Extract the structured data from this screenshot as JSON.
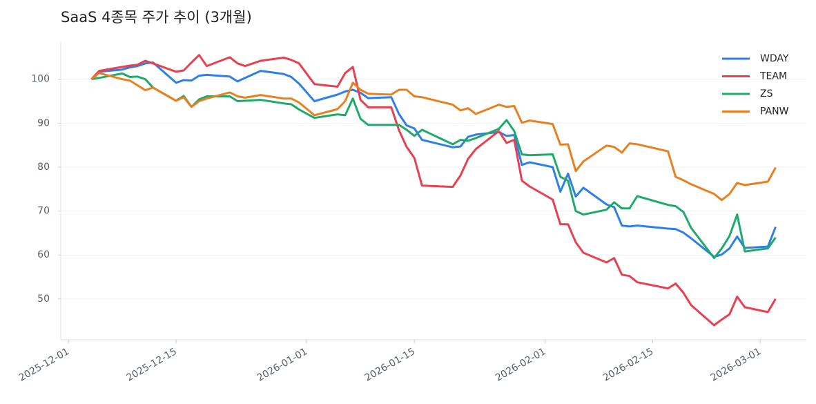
{
  "chart_data": {
    "type": "line",
    "title": "SaaS 4종목 주가 추이 (3개월)",
    "x": [
      "2025-12-04",
      "2025-12-05",
      "2025-12-08",
      "2025-12-09",
      "2025-12-10",
      "2025-12-11",
      "2025-12-12",
      "2025-12-15",
      "2025-12-16",
      "2025-12-17",
      "2025-12-18",
      "2025-12-19",
      "2025-12-22",
      "2025-12-23",
      "2025-12-24",
      "2025-12-26",
      "2025-12-29",
      "2025-12-30",
      "2025-12-31",
      "2026-01-02",
      "2026-01-05",
      "2026-01-06",
      "2026-01-07",
      "2026-01-08",
      "2026-01-09",
      "2026-01-12",
      "2026-01-13",
      "2026-01-14",
      "2026-01-15",
      "2026-01-16",
      "2026-01-20",
      "2026-01-21",
      "2026-01-22",
      "2026-01-23",
      "2026-01-26",
      "2026-01-27",
      "2026-01-28",
      "2026-01-29",
      "2026-01-30",
      "2026-02-02",
      "2026-02-03",
      "2026-02-04",
      "2026-02-05",
      "2026-02-06",
      "2026-02-09",
      "2026-02-10",
      "2026-02-11",
      "2026-02-12",
      "2026-02-13",
      "2026-02-17",
      "2026-02-18",
      "2026-02-19",
      "2026-02-20",
      "2026-02-23",
      "2026-02-24",
      "2026-02-25",
      "2026-02-26",
      "2026-02-27",
      "2026-03-02",
      "2026-03-03"
    ],
    "series": [
      {
        "name": "WDAY",
        "color": "#2f7fe8",
        "values": [
          100,
          101.7,
          102.2,
          102.7,
          103,
          103.6,
          103.8,
          99.2,
          99.8,
          99.7,
          100.8,
          101,
          100.6,
          99.5,
          100.3,
          101.9,
          101.2,
          100.5,
          99,
          95,
          96.5,
          97.2,
          97.6,
          96.9,
          95.7,
          95.9,
          92.1,
          89.5,
          88.8,
          86.2,
          84.5,
          84.7,
          86.9,
          87.4,
          88,
          87.1,
          87.3,
          80.5,
          81.1,
          80,
          74.4,
          78.5,
          73.3,
          75.3,
          71.5,
          70.9,
          66.7,
          66.5,
          66.7,
          66,
          65.9,
          65.1,
          63.8,
          59.6,
          60.1,
          61.5,
          64.2,
          61.6,
          61.9,
          66.4
        ]
      },
      {
        "name": "TEAM",
        "color": "#e8404f",
        "values": [
          100,
          101.9,
          102.8,
          103.1,
          103.3,
          104.2,
          103.6,
          101.7,
          102,
          103.8,
          105.5,
          103,
          105,
          103.6,
          103,
          104.2,
          104.9,
          104.4,
          103.6,
          98.9,
          98.3,
          101.4,
          102.8,
          95.3,
          93.6,
          93.6,
          88.4,
          84.6,
          82.1,
          75.8,
          75.5,
          78.1,
          81.9,
          84.1,
          88.2,
          85.5,
          86.2,
          76.9,
          75.6,
          72.6,
          67,
          67,
          62.9,
          60.5,
          58.3,
          59.3,
          55.5,
          55.2,
          53.8,
          52.4,
          53.5,
          51.4,
          48.6,
          44,
          45.3,
          46.5,
          50.5,
          48.1,
          47,
          50
        ]
      },
      {
        "name": "ZS",
        "color": "#1faa6b",
        "values": [
          100,
          100.3,
          101.3,
          100.5,
          100.6,
          100,
          98.1,
          95.1,
          96.2,
          93.7,
          95.4,
          96.1,
          96.1,
          95,
          95.1,
          95.3,
          94.5,
          94.3,
          93.1,
          91.2,
          92,
          91.8,
          95.6,
          91,
          89.6,
          89.6,
          89.6,
          88.5,
          87.1,
          88.5,
          85.2,
          86.2,
          86,
          86.6,
          88.7,
          90.7,
          88.2,
          82.9,
          82.7,
          82.9,
          77.8,
          76.9,
          70,
          69.2,
          70.3,
          72,
          70.6,
          70.6,
          73.4,
          71.4,
          71.1,
          69.8,
          66.2,
          59.3,
          61.5,
          64.3,
          69.2,
          60.8,
          61.5,
          64
        ]
      },
      {
        "name": "PANW",
        "color": "#e8801f",
        "values": [
          100,
          101.4,
          100,
          99.7,
          98.6,
          97.5,
          98.1,
          95.1,
          95.9,
          93.7,
          95,
          95.6,
          97,
          96.1,
          95.8,
          96.4,
          95.6,
          95.6,
          94.7,
          91.8,
          93.2,
          95,
          99.2,
          97.6,
          96.7,
          96.5,
          97.6,
          97.6,
          96.1,
          95.9,
          94.2,
          92.9,
          93.4,
          92.1,
          94.2,
          93.7,
          93.9,
          90.1,
          90.6,
          89.8,
          85.1,
          85.2,
          79.1,
          81.3,
          84.9,
          84.6,
          83.3,
          85.4,
          85.2,
          83.6,
          77.8,
          77,
          76.1,
          73.9,
          72.5,
          73.9,
          76.4,
          75.9,
          76.7,
          79.9
        ]
      }
    ],
    "xlim": [
      "2025-11-30",
      "2026-03-07"
    ],
    "xticks": [
      "2025-12-01",
      "2025-12-15",
      "2026-01-01",
      "2026-01-15",
      "2026-02-01",
      "2026-02-15",
      "2026-03-01"
    ],
    "ylim": [
      40.7,
      108.6
    ],
    "yticks": [
      50,
      60,
      70,
      80,
      90,
      100
    ],
    "grid": true,
    "legend": "upper right"
  }
}
